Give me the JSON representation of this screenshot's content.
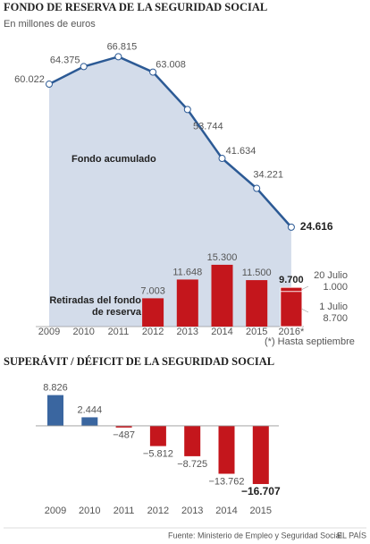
{
  "chart_data": [
    {
      "type": "line",
      "title": "FONDO DE RESERVA DE LA SEGURIDAD SOCIAL",
      "subtitle": "En millones de euros",
      "categories": [
        "2009",
        "2010",
        "2011",
        "2012",
        "2013",
        "2014",
        "2015",
        "2016*"
      ],
      "series": [
        {
          "name": "Fondo acumulado",
          "type": "area",
          "color": "#2c5a95",
          "fill": "#d3dcea",
          "values": [
            60022,
            64375,
            66815,
            63008,
            53744,
            41634,
            34221,
            24616
          ],
          "value_labels": [
            "60.022",
            "64.375",
            "66.815",
            "63.008",
            "53.744",
            "41.634",
            "34.221",
            "24.616"
          ]
        },
        {
          "name": "Retiradas del fondo de reserva",
          "type": "bar",
          "color": "#c4161c",
          "values": [
            null,
            null,
            null,
            7003,
            11648,
            15300,
            11500,
            9700
          ],
          "value_labels": [
            null,
            null,
            null,
            "7.003",
            "11.648",
            "15.300",
            "11.500",
            "9.700"
          ]
        }
      ],
      "breakdown": [
        {
          "label": "1 Julio",
          "value": 8700,
          "value_label": "8.700"
        },
        {
          "label": "20 Julio",
          "value": 1000,
          "value_label": "1.000"
        }
      ],
      "note": "(*) Hasta septiembre",
      "ylim": [
        0,
        70000
      ]
    },
    {
      "type": "bar",
      "title": "SUPERÁVIT / DÉFICIT DE LA SEGURIDAD SOCIAL",
      "categories": [
        "2009",
        "2010",
        "2011",
        "2012",
        "2013",
        "2014",
        "2015"
      ],
      "values": [
        8826,
        2444,
        -487,
        -5812,
        -8725,
        -13762,
        -16707
      ],
      "value_labels": [
        "8.826",
        "2.444",
        "−487",
        "−5.812",
        "−8.725",
        "−13.762",
        "−16.707"
      ],
      "color_positive": "#3a66a0",
      "color_negative": "#c4161c",
      "ylim": [
        -18000,
        10000
      ]
    }
  ],
  "source": "Fuente: Ministerio de Empleo y Seguridad Social.",
  "credit": "EL PAÍS"
}
